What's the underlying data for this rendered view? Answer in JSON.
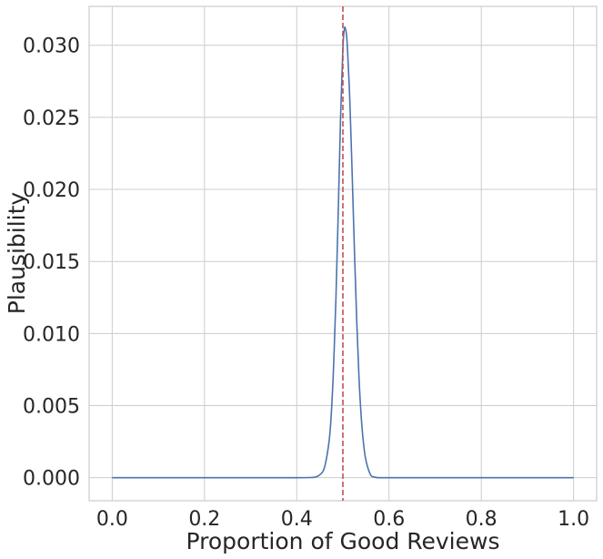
{
  "chart_data": {
    "type": "line",
    "title": "",
    "xlabel": "Proportion of Good Reviews",
    "ylabel": "Plausibility",
    "xlim": [
      -0.05,
      1.05
    ],
    "ylim": [
      -0.0016,
      0.0327
    ],
    "x_ticks": [
      0.0,
      0.2,
      0.4,
      0.6,
      0.8,
      1.0
    ],
    "x_tick_labels": [
      "0.0",
      "0.2",
      "0.4",
      "0.6",
      "0.8",
      "1.0"
    ],
    "y_ticks": [
      0.0,
      0.005,
      0.01,
      0.015,
      0.02,
      0.025,
      0.03
    ],
    "y_tick_labels": [
      "0.000",
      "0.005",
      "0.010",
      "0.015",
      "0.020",
      "0.025",
      "0.030"
    ],
    "grid": true,
    "series": [
      {
        "color": "#4c72b0",
        "x": [
          0.0,
          0.1,
          0.2,
          0.3,
          0.4,
          0.43,
          0.44,
          0.45,
          0.46,
          0.47,
          0.475,
          0.48,
          0.485,
          0.49,
          0.495,
          0.5,
          0.503,
          0.505,
          0.508,
          0.51,
          0.515,
          0.52,
          0.525,
          0.53,
          0.535,
          0.54,
          0.545,
          0.55,
          0.56,
          0.57,
          0.58,
          0.6,
          0.7,
          0.8,
          0.9,
          1.0
        ],
        "y": [
          0.0,
          0.0,
          0.0,
          0.0,
          0.0,
          1e-05,
          4e-05,
          0.0002,
          0.0007,
          0.0025,
          0.0045,
          0.0078,
          0.0125,
          0.0185,
          0.025,
          0.0298,
          0.0311,
          0.0312,
          0.0307,
          0.0297,
          0.0262,
          0.0212,
          0.0158,
          0.0109,
          0.0069,
          0.0041,
          0.0023,
          0.0012,
          0.0002,
          3e-05,
          0.0,
          0.0,
          0.0,
          0.0,
          0.0,
          0.0
        ]
      }
    ],
    "annotations": [
      {
        "type": "vline",
        "x": 0.5,
        "color": "#c44e52",
        "style": "dashed"
      }
    ]
  }
}
